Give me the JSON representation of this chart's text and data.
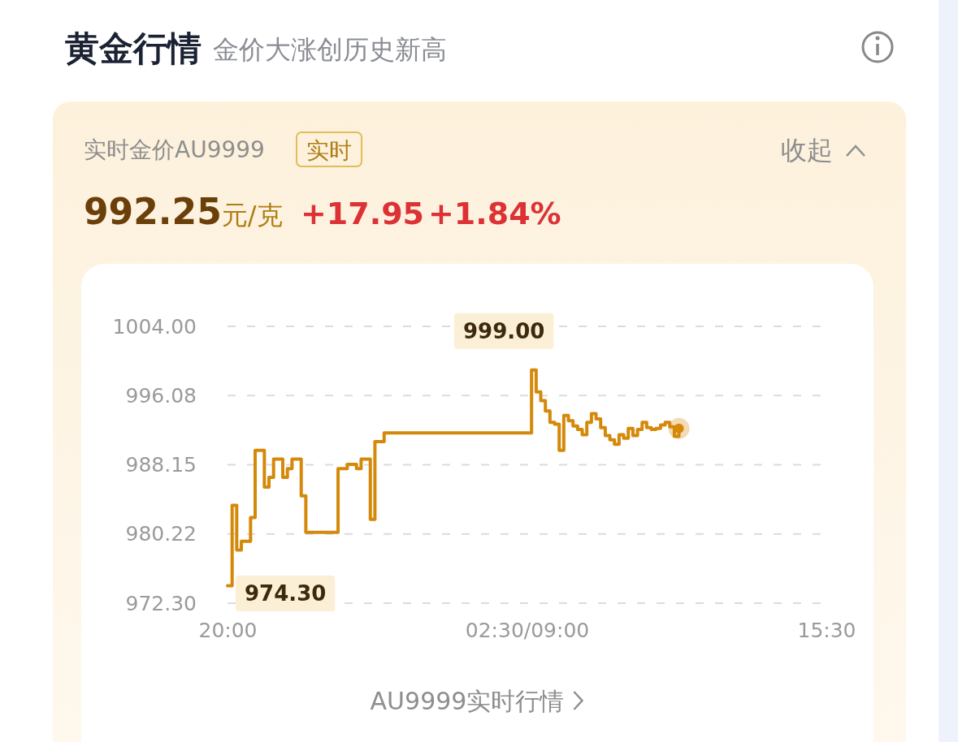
{
  "chart_data": {
    "type": "step",
    "title": "黄金行情",
    "subtitle": "金价大涨创历史新高",
    "categories": [
      "20:00",
      null,
      null,
      null,
      null,
      null,
      null,
      null,
      null,
      null,
      null,
      null,
      null,
      null,
      null,
      null,
      null,
      null,
      null,
      null,
      null,
      null,
      null,
      null,
      null,
      null,
      null,
      null,
      null,
      null,
      null,
      null,
      null,
      null,
      null,
      null,
      null,
      null,
      null,
      null,
      null,
      null,
      null,
      null,
      null,
      null,
      null,
      null,
      null,
      null,
      null,
      null,
      null,
      null,
      null,
      null,
      null,
      null,
      null,
      null,
      null,
      null,
      null,
      null,
      null,
      "02:30/09:00",
      null,
      null,
      null,
      null,
      null,
      null,
      null,
      null,
      null,
      null,
      null,
      null,
      null,
      null,
      null,
      null,
      null,
      null,
      null,
      null,
      null,
      null,
      null,
      null,
      null,
      null,
      null,
      null,
      null,
      null,
      null,
      null,
      null,
      null,
      null,
      null,
      null,
      null,
      null,
      null,
      null,
      null,
      null,
      null,
      null,
      null,
      null,
      null,
      null,
      null,
      null,
      null,
      null,
      null,
      null,
      null,
      null,
      null,
      null,
      null,
      null,
      null,
      null,
      null,
      "15:30"
    ],
    "series": [
      {
        "color": "#d4890a",
        "values": [
          974.3,
          983.5,
          978.4,
          979.4,
          979.4,
          982.1,
          989.8,
          989.8,
          985.6,
          986.7,
          988.8,
          988.8,
          986.7,
          987.7,
          988.8,
          988.8,
          984.6,
          980.4,
          980.4,
          980.4,
          980.4,
          980.4,
          980.4,
          980.4,
          987.7,
          987.7,
          988.2,
          988.2,
          987.7,
          988.8,
          988.8,
          981.9,
          990.8,
          990.8,
          991.8,
          991.8,
          991.8,
          991.8,
          991.8,
          991.8,
          991.8,
          991.8,
          991.8,
          991.8,
          991.8,
          991.8,
          991.8,
          991.8,
          991.8,
          991.8,
          991.8,
          991.8,
          991.8,
          991.8,
          991.8,
          991.8,
          991.8,
          991.8,
          991.8,
          991.8,
          991.8,
          991.8,
          991.8,
          991.8,
          991.8,
          991.8,
          999.0,
          996.5,
          995.5,
          994.3,
          993.0,
          992.8,
          989.8,
          993.8,
          993.2,
          992.6,
          992.2,
          991.6,
          993.0,
          994.0,
          993.4,
          992.4,
          991.5,
          991.0,
          990.5,
          991.6,
          991.2,
          992.3,
          991.5,
          992.2,
          993.0,
          992.4,
          992.2,
          992.3,
          992.7,
          993.0,
          992.5,
          991.4,
          992.3,
          null,
          null,
          null,
          null,
          null,
          null,
          null,
          null,
          null,
          null,
          null,
          null,
          null,
          null,
          null,
          null,
          null,
          null,
          null,
          null,
          null,
          null,
          null,
          null,
          null,
          null,
          null,
          null,
          null,
          null,
          null,
          null
        ]
      }
    ],
    "ylim": [
      972.3,
      1004.0
    ],
    "yticks": [
      {
        "value": 972.3,
        "label": "972.30"
      },
      {
        "value": 980.22,
        "label": "980.22"
      },
      {
        "value": 988.15,
        "label": "988.15"
      },
      {
        "value": 996.08,
        "label": "996.08"
      },
      {
        "value": 1004.0,
        "label": "1004.00"
      }
    ],
    "grid": "y",
    "marker": "none",
    "line_style": "solid",
    "annotations": [
      "实时金价AU9999",
      "实时",
      "992.25元/克",
      "+17.95",
      "+1.84%",
      "收起",
      "AU9999实时行情",
      "999.00",
      "974.30"
    ]
  }
}
